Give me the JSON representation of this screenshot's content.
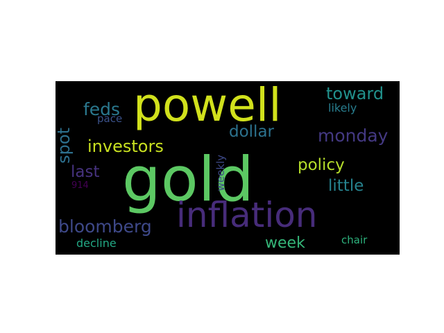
{
  "cloud": {
    "background": "#000000",
    "words": [
      {
        "id": "gold",
        "text": "gold",
        "color": "#5cc863"
      },
      {
        "id": "powell",
        "text": "powell",
        "color": "#d1e11c"
      },
      {
        "id": "inflation",
        "text": "inflation",
        "color": "#472c7a"
      },
      {
        "id": "investors",
        "text": "investors",
        "color": "#c8e020"
      },
      {
        "id": "bloomberg",
        "text": "bloomberg",
        "color": "#3e4989"
      },
      {
        "id": "feds",
        "text": "feds",
        "color": "#2a788e"
      },
      {
        "id": "monday",
        "text": "monday",
        "color": "#443983"
      },
      {
        "id": "toward",
        "text": "toward",
        "color": "#21918c"
      },
      {
        "id": "dollar",
        "text": "dollar",
        "color": "#2c728e"
      },
      {
        "id": "policy",
        "text": "policy",
        "color": "#b5de2b"
      },
      {
        "id": "little",
        "text": "little",
        "color": "#26828e"
      },
      {
        "id": "last",
        "text": "last",
        "color": "#46327e"
      },
      {
        "id": "week",
        "text": "week",
        "color": "#35b779"
      },
      {
        "id": "spot",
        "text": "spot",
        "color": "#2d708e"
      },
      {
        "id": "likely",
        "text": "likely",
        "color": "#287d8e"
      },
      {
        "id": "pace",
        "text": "pace",
        "color": "#3b528b"
      },
      {
        "id": "weekly",
        "text": "weekly",
        "color": "#3e4a89"
      },
      {
        "id": "decline",
        "text": "decline",
        "color": "#22a884"
      },
      {
        "id": "chair",
        "text": "chair",
        "color": "#2db27d"
      },
      {
        "id": "914",
        "text": "914",
        "color": "#440154"
      }
    ]
  }
}
